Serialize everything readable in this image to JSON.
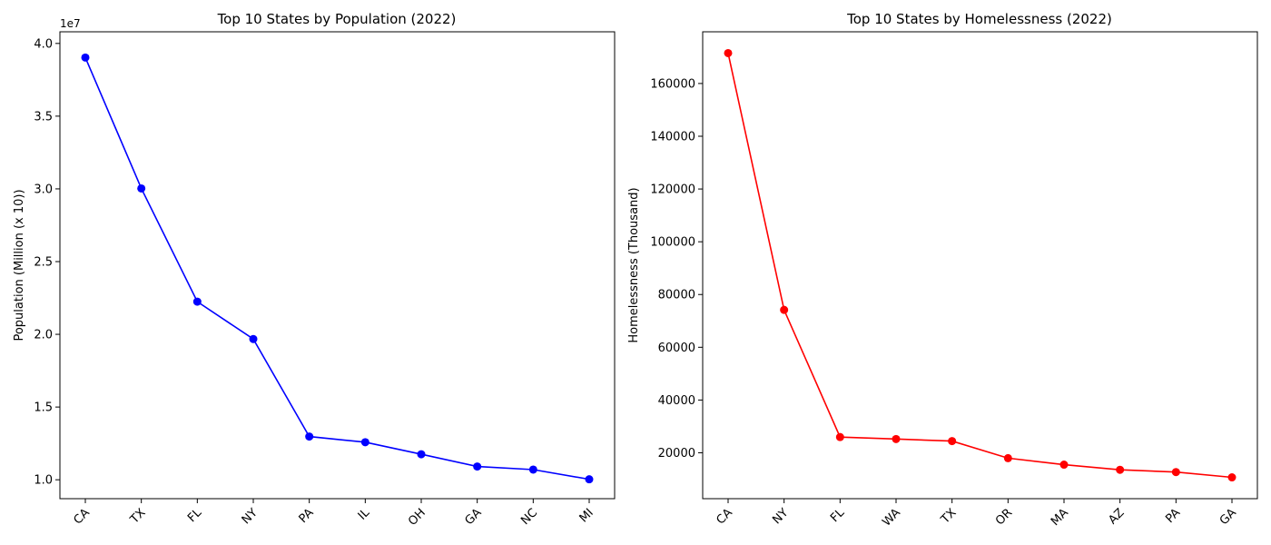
{
  "chart_data": [
    {
      "type": "line",
      "title": "Top 10 States by Population (2022)",
      "xlabel": "",
      "ylabel": "Population (Million (x 10))",
      "y_offset_label": "1e7",
      "categories": [
        "CA",
        "TX",
        "FL",
        "NY",
        "PA",
        "IL",
        "OH",
        "GA",
        "NC",
        "MI"
      ],
      "values": [
        39029342,
        30029572,
        22244823,
        19677151,
        12972008,
        12582032,
        11756058,
        10912876,
        10698973,
        10034113
      ],
      "y_ticks": [
        10000000,
        15000000,
        20000000,
        25000000,
        30000000,
        35000000,
        40000000
      ],
      "y_tick_labels": [
        "1.0",
        "1.5",
        "2.0",
        "2.5",
        "3.0",
        "3.5",
        "4.0"
      ],
      "ylim": [
        8700000,
        40800000
      ],
      "color": "#0000ff",
      "marker": "circle",
      "grid": false
    },
    {
      "type": "line",
      "title": "Top 10 States by Homelessness (2022)",
      "xlabel": "",
      "ylabel": "Homelessness (Thousand)",
      "categories": [
        "CA",
        "NY",
        "FL",
        "WA",
        "TX",
        "OR",
        "MA",
        "AZ",
        "PA",
        "GA"
      ],
      "values": [
        171521,
        74178,
        25959,
        25211,
        24432,
        17959,
        15507,
        13553,
        12691,
        10689
      ],
      "y_ticks": [
        20000,
        40000,
        60000,
        80000,
        100000,
        120000,
        140000,
        160000
      ],
      "y_tick_labels": [
        "20000",
        "40000",
        "60000",
        "80000",
        "100000",
        "120000",
        "140000",
        "160000"
      ],
      "ylim": [
        2600,
        179600
      ],
      "color": "#ff0000",
      "marker": "circle",
      "grid": false
    }
  ]
}
